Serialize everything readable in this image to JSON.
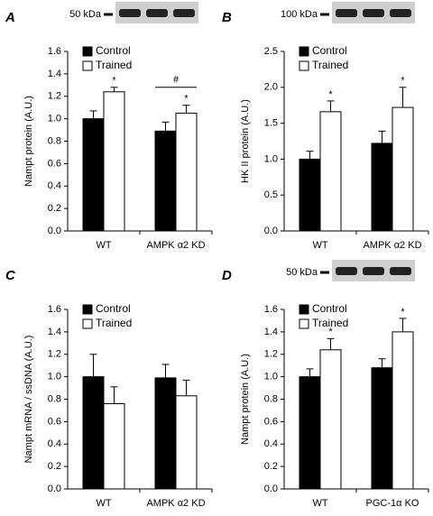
{
  "chart_data": [
    {
      "type": "bar",
      "panel": "A",
      "blot_label": "50 kDa",
      "y_label": "Nampt protein (A.U.)",
      "categories": [
        "WT",
        "AMPK α2 KD"
      ],
      "series": [
        {
          "name": "Control",
          "color": "#000000",
          "values": [
            1.0,
            0.89
          ],
          "errors": [
            0.07,
            0.08
          ]
        },
        {
          "name": "Trained",
          "color": "#ffffff",
          "values": [
            1.24,
            1.05
          ],
          "errors": [
            0.04,
            0.07
          ],
          "markers": [
            "*",
            "*"
          ]
        }
      ],
      "group_markers": [
        null,
        "#"
      ],
      "ylim": [
        0,
        1.6
      ],
      "yticks": [
        {
          "value": 0,
          "label": "0.0"
        },
        0.2,
        0.4,
        0.6,
        0.8,
        {
          "value": 1,
          "label": "1.0"
        },
        1.2,
        1.4,
        1.6
      ],
      "legend": "upper left"
    },
    {
      "type": "bar",
      "panel": "B",
      "blot_label": "100 kDa",
      "y_label": "HK II protein (A.U.)",
      "categories": [
        "WT",
        "AMPK α2 KD"
      ],
      "series": [
        {
          "name": "Control",
          "color": "#000000",
          "values": [
            1.0,
            1.22
          ],
          "errors": [
            0.11,
            0.17
          ]
        },
        {
          "name": "Trained",
          "color": "#ffffff",
          "values": [
            1.66,
            1.72
          ],
          "errors": [
            0.15,
            0.28
          ],
          "markers": [
            "*",
            "*"
          ]
        }
      ],
      "ylim": [
        0,
        2.5
      ],
      "yticks": [
        {
          "value": 0,
          "label": "0.0"
        },
        0.5,
        {
          "value": 1,
          "label": "1.0"
        },
        1.5,
        {
          "value": 2,
          "label": "2.0"
        },
        2.5
      ],
      "legend": "upper left"
    },
    {
      "type": "bar",
      "panel": "C",
      "y_label": "Nampt mRNA / ssDNA (A.U.)",
      "categories": [
        "WT",
        "AMPK α2 KD"
      ],
      "series": [
        {
          "name": "Control",
          "color": "#000000",
          "values": [
            1.0,
            0.99
          ],
          "errors": [
            0.2,
            0.12
          ]
        },
        {
          "name": "Trained",
          "color": "#ffffff",
          "values": [
            0.76,
            0.83
          ],
          "errors": [
            0.15,
            0.14
          ]
        }
      ],
      "ylim": [
        0,
        1.6
      ],
      "yticks": [
        {
          "value": 0,
          "label": "0.0"
        },
        0.2,
        0.4,
        0.6,
        0.8,
        {
          "value": 1,
          "label": "1.0"
        },
        1.2,
        1.4,
        1.6
      ],
      "legend": "upper left"
    },
    {
      "type": "bar",
      "panel": "D",
      "blot_label": "50 kDa",
      "y_label": "Nampt protein (A.U.)",
      "categories": [
        "WT",
        "PGC-1α KO"
      ],
      "series": [
        {
          "name": "Control",
          "color": "#000000",
          "values": [
            1.0,
            1.08
          ],
          "errors": [
            0.07,
            0.08
          ]
        },
        {
          "name": "Trained",
          "color": "#ffffff",
          "values": [
            1.24,
            1.4
          ],
          "errors": [
            0.1,
            0.12
          ],
          "markers": [
            "*",
            "*"
          ]
        }
      ],
      "ylim": [
        0,
        1.6
      ],
      "yticks": [
        {
          "value": 0,
          "label": "0.0"
        },
        0.2,
        0.4,
        0.6,
        0.8,
        {
          "value": 1,
          "label": "1.0"
        },
        1.2,
        1.4,
        1.6
      ],
      "legend": "upper left"
    }
  ]
}
